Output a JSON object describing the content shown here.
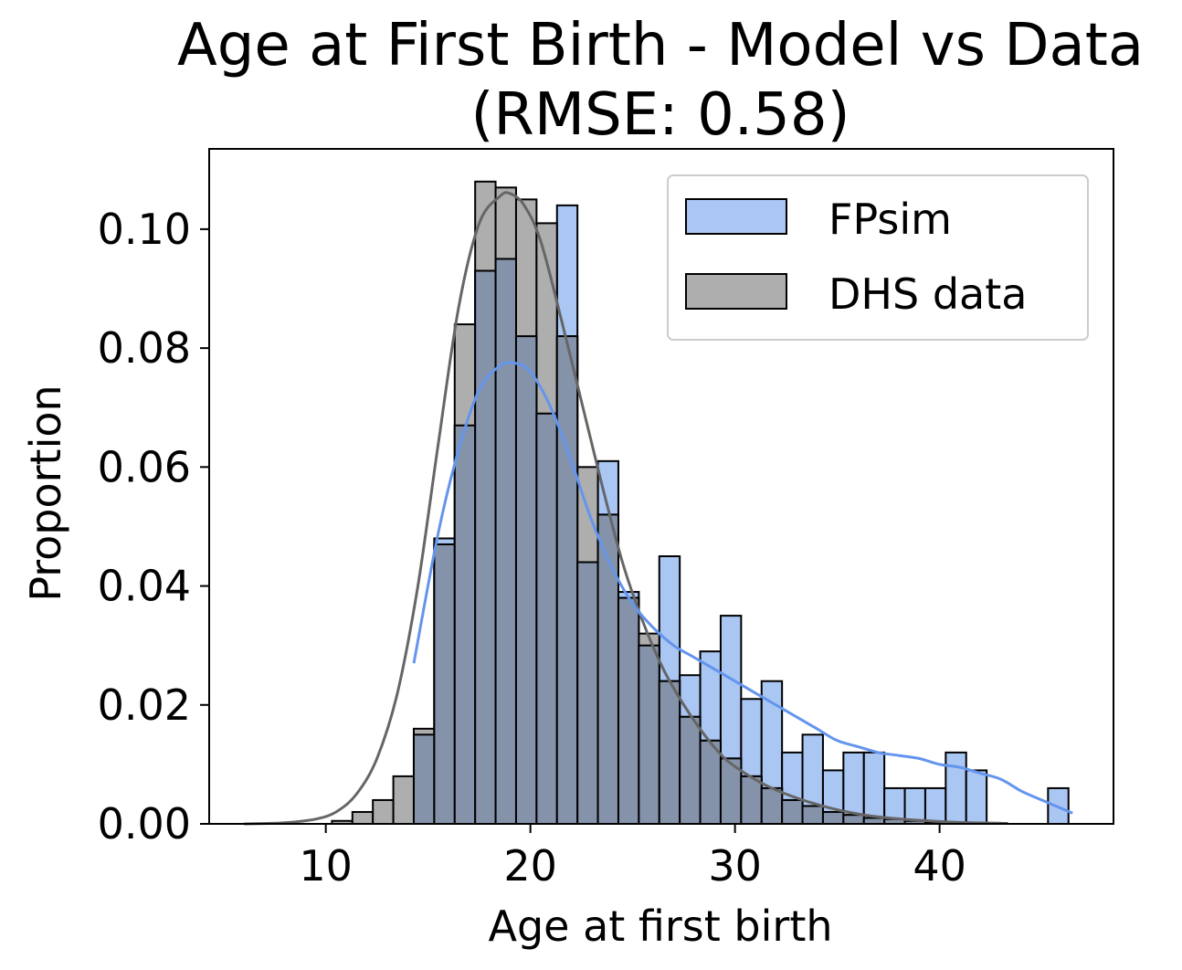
{
  "chart_data": {
    "type": "bar",
    "title_line1": "Age at First Birth - Model vs Data",
    "title_line2": "(RMSE: 0.58)",
    "xlabel": "Age at first birth",
    "ylabel": "Proportion",
    "xlim": [
      4.3,
      48.5
    ],
    "ylim": [
      0,
      0.1135
    ],
    "xticks": [
      10,
      20,
      30,
      40
    ],
    "yticks": [
      0.0,
      0.02,
      0.04,
      0.06,
      0.08,
      0.1
    ],
    "ytick_labels": [
      "0.00",
      "0.02",
      "0.04",
      "0.06",
      "0.08",
      "0.10"
    ],
    "bin_width": 1,
    "legend": {
      "location": "upper right",
      "entries": [
        "FPsim",
        "DHS data"
      ]
    },
    "series": [
      {
        "name": "FPsim",
        "color": "#6495ed",
        "fill": "#aac6f3",
        "kde_color": "#6495ed",
        "bin_starts": [
          14.3,
          15.3,
          16.3,
          17.3,
          18.3,
          19.3,
          20.3,
          21.3,
          22.3,
          23.3,
          24.3,
          25.3,
          26.3,
          27.3,
          28.3,
          29.3,
          30.3,
          31.3,
          32.3,
          33.3,
          34.3,
          35.3,
          36.3,
          37.3,
          38.3,
          39.3,
          40.3,
          41.3,
          42.3,
          43.3,
          44.3,
          45.3
        ],
        "values": [
          0.015,
          0.048,
          0.067,
          0.093,
          0.095,
          0.082,
          0.069,
          0.104,
          0.044,
          0.061,
          0.039,
          0.03,
          0.045,
          0.025,
          0.029,
          0.035,
          0.021,
          0.024,
          0.012,
          0.015,
          0.009,
          0.012,
          0.012,
          0.006,
          0.006,
          0.006,
          0.012,
          0.009,
          0.0,
          0.0,
          0.0,
          0.006
        ],
        "kde_x": [
          14.3,
          15.5,
          16.5,
          17.5,
          18.5,
          19.2,
          20.0,
          21.0,
          22.0,
          23.0,
          24.0,
          25.0,
          26.0,
          27.0,
          28.0,
          29.0,
          30.0,
          31.0,
          32.0,
          33.0,
          34.0,
          35.0,
          36.0,
          37.0,
          38.0,
          39.0,
          40.0,
          41.0,
          42.0,
          43.0,
          44.0,
          45.0,
          46.5
        ],
        "kde_y": [
          0.027,
          0.049,
          0.063,
          0.073,
          0.077,
          0.0775,
          0.076,
          0.07,
          0.061,
          0.051,
          0.043,
          0.037,
          0.033,
          0.03,
          0.028,
          0.026,
          0.024,
          0.022,
          0.02,
          0.018,
          0.016,
          0.014,
          0.013,
          0.012,
          0.0115,
          0.011,
          0.01,
          0.0095,
          0.0085,
          0.0075,
          0.0055,
          0.004,
          0.0018
        ]
      },
      {
        "name": "DHS data",
        "color": "#808080",
        "fill": "#aeaeae",
        "kde_color": "#666666",
        "bin_starts": [
          10.3,
          11.3,
          12.3,
          13.3,
          14.3,
          15.3,
          16.3,
          17.3,
          18.3,
          19.3,
          20.3,
          21.3,
          22.3,
          23.3,
          24.3,
          25.3,
          26.3,
          27.3,
          28.3,
          29.3,
          30.3,
          31.3,
          32.3,
          33.3,
          34.3,
          35.3,
          36.3,
          37.3,
          38.3,
          39.3,
          40.3,
          41.3,
          42.3
        ],
        "values": [
          0.0005,
          0.002,
          0.004,
          0.008,
          0.016,
          0.047,
          0.084,
          0.108,
          0.107,
          0.105,
          0.101,
          0.082,
          0.06,
          0.052,
          0.038,
          0.032,
          0.024,
          0.018,
          0.014,
          0.011,
          0.008,
          0.006,
          0.004,
          0.003,
          0.002,
          0.0015,
          0.001,
          0.0008,
          0.0005,
          0.0003,
          0.0002,
          0.0001,
          0.0001
        ],
        "kde_x": [
          6.0,
          8.0,
          9.5,
          10.5,
          11.5,
          12.5,
          13.5,
          14.5,
          15.5,
          16.5,
          17.5,
          18.5,
          19.0,
          19.7,
          20.5,
          21.5,
          22.5,
          23.5,
          24.5,
          25.5,
          26.5,
          27.5,
          28.5,
          29.5,
          30.5,
          31.5,
          32.5,
          33.5,
          34.5,
          35.5,
          36.5,
          37.5,
          38.5,
          39.5,
          40.5,
          41.5,
          43.0
        ],
        "kde_y": [
          0.0,
          0.0002,
          0.0008,
          0.002,
          0.005,
          0.011,
          0.022,
          0.04,
          0.064,
          0.087,
          0.101,
          0.1055,
          0.106,
          0.104,
          0.098,
          0.085,
          0.071,
          0.057,
          0.044,
          0.034,
          0.026,
          0.02,
          0.015,
          0.011,
          0.0085,
          0.0065,
          0.005,
          0.0038,
          0.0028,
          0.002,
          0.0014,
          0.001,
          0.0007,
          0.0005,
          0.0003,
          0.0002,
          0.0001
        ]
      }
    ]
  }
}
